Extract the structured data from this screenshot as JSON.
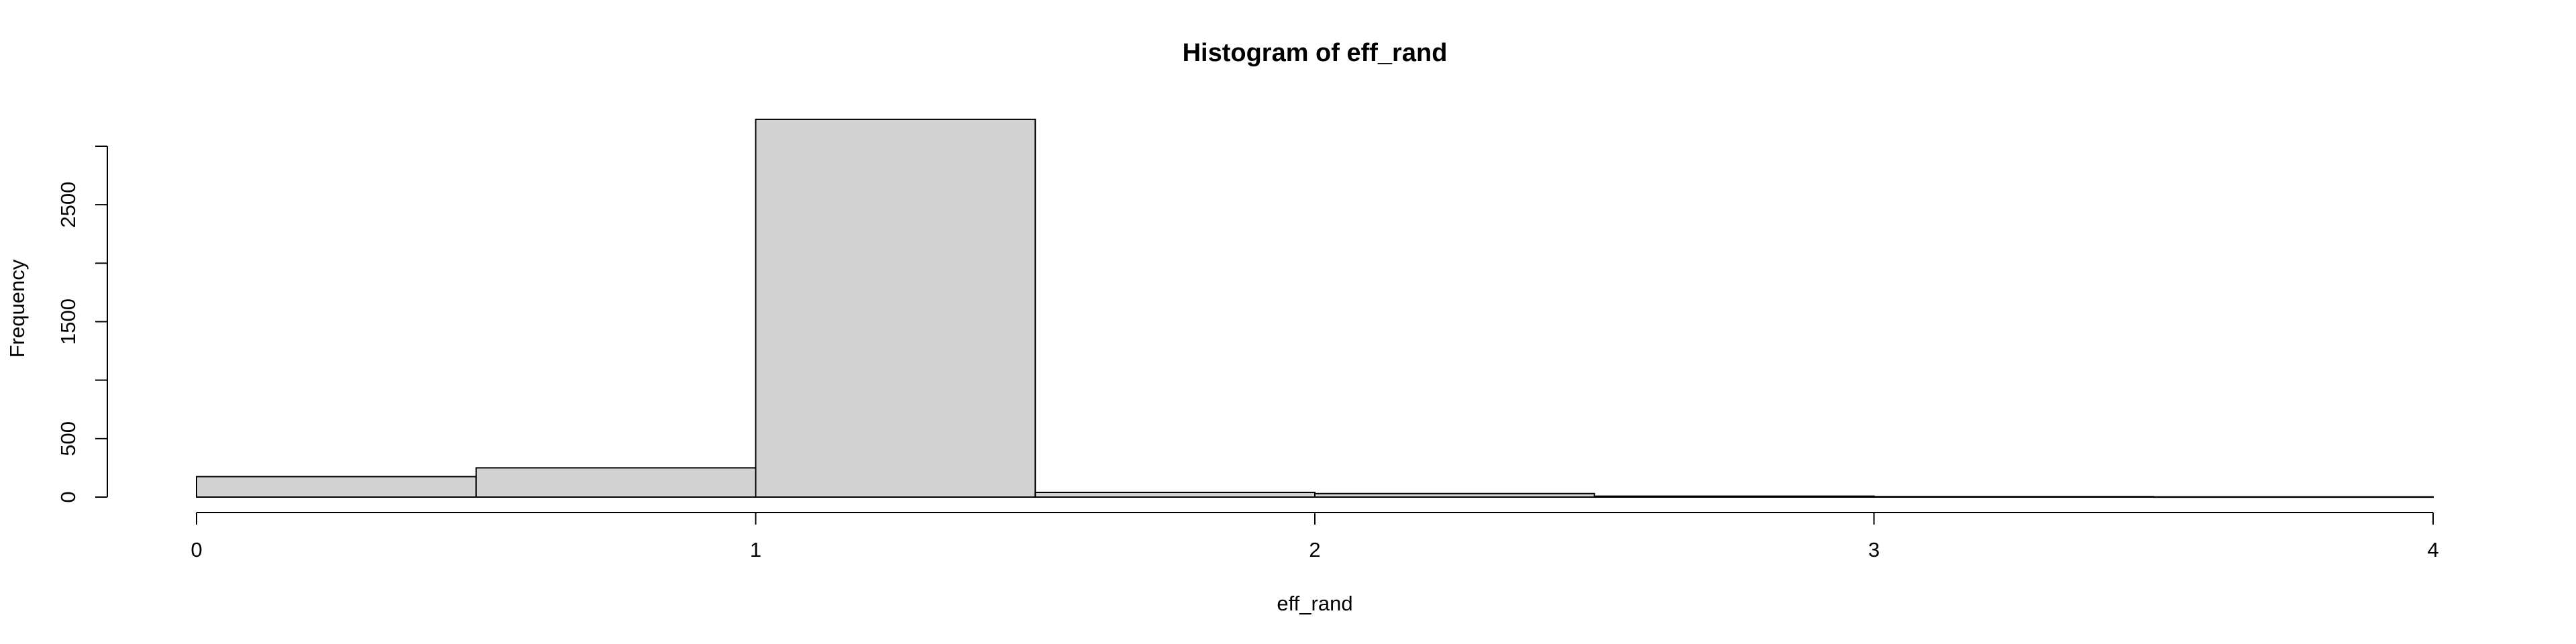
{
  "chart_data": {
    "type": "bar",
    "title": "Histogram of eff_rand",
    "xlabel": "eff_rand",
    "ylabel": "Frequency",
    "bins": [
      {
        "x0": 0.0,
        "x1": 0.5,
        "count": 175
      },
      {
        "x0": 0.5,
        "x1": 1.0,
        "count": 250
      },
      {
        "x0": 1.0,
        "x1": 1.5,
        "count": 3230
      },
      {
        "x0": 1.5,
        "x1": 2.0,
        "count": 40
      },
      {
        "x0": 2.0,
        "x1": 2.5,
        "count": 30
      },
      {
        "x0": 2.5,
        "x1": 3.0,
        "count": 8
      },
      {
        "x0": 3.0,
        "x1": 3.5,
        "count": 4
      },
      {
        "x0": 3.5,
        "x1": 4.0,
        "count": 2
      }
    ],
    "xlim": [
      0,
      4
    ],
    "ylim": [
      0,
      3000
    ],
    "x_ticks": [
      "0",
      "1",
      "2",
      "3",
      "4"
    ],
    "y_ticks": [
      0,
      500,
      1000,
      1500,
      2000,
      2500,
      3000
    ],
    "y_tick_labels": [
      "0",
      "500",
      "",
      "1500",
      "",
      "2500",
      ""
    ],
    "grid": false,
    "bar_fill": "#d3d3d3",
    "bar_stroke": "#000000"
  }
}
